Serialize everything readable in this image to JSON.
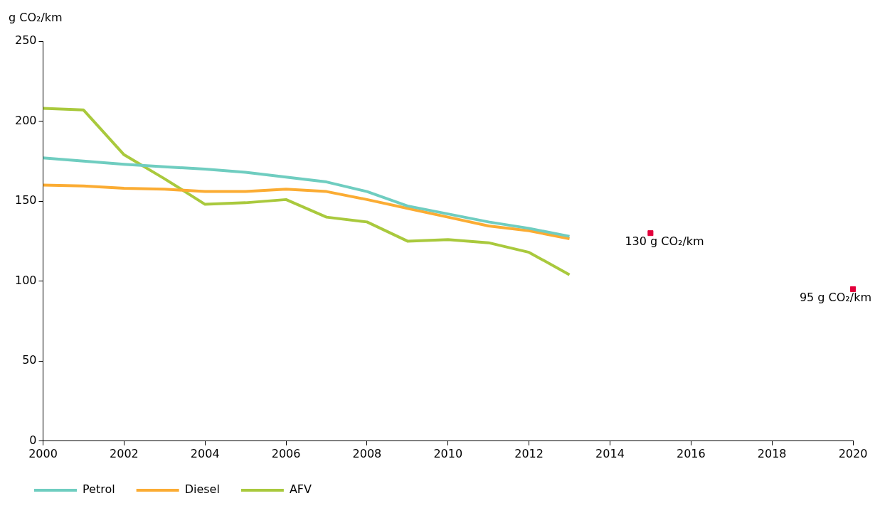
{
  "chart_data": {
    "type": "line",
    "ylabel": "g CO₂/km",
    "xlim": [
      2000,
      2020
    ],
    "xticks": [
      2000,
      2002,
      2004,
      2006,
      2008,
      2010,
      2012,
      2014,
      2016,
      2018,
      2020
    ],
    "ylim": [
      0,
      250
    ],
    "yticks": [
      0,
      50,
      100,
      150,
      200,
      250
    ],
    "grid": false,
    "legend": "bottom",
    "marker": "none",
    "x": [
      2000,
      2001,
      2002,
      2003,
      2004,
      2005,
      2006,
      2007,
      2008,
      2009,
      2010,
      2011,
      2012,
      2013
    ],
    "series": [
      {
        "name": "Petrol",
        "color": "#6fcdc0",
        "values": [
          177,
          175,
          173,
          171.5,
          170,
          168,
          165,
          162,
          156,
          147,
          142,
          137,
          133,
          128
        ]
      },
      {
        "name": "Diesel",
        "color": "#fbac33",
        "values": [
          160,
          159.5,
          158,
          157.5,
          156,
          156,
          157.5,
          156,
          151,
          145.5,
          140,
          134.5,
          131.5,
          126.5
        ]
      },
      {
        "name": "AFV",
        "color": "#a9c93d",
        "values": [
          208,
          207,
          179,
          164,
          148,
          149,
          151,
          140,
          137,
          125,
          126,
          124,
          118,
          104
        ]
      },
      {
        "type": "scatter",
        "marker": "square",
        "color": "#e3003b",
        "x": [
          2015,
          2020
        ],
        "values": [
          130,
          95
        ]
      }
    ],
    "annotations": [
      {
        "text": "130 g CO₂/km",
        "x": 2015,
        "y": 130
      },
      {
        "text": "95 g CO₂/km",
        "x": 2020,
        "y": 95
      }
    ]
  }
}
